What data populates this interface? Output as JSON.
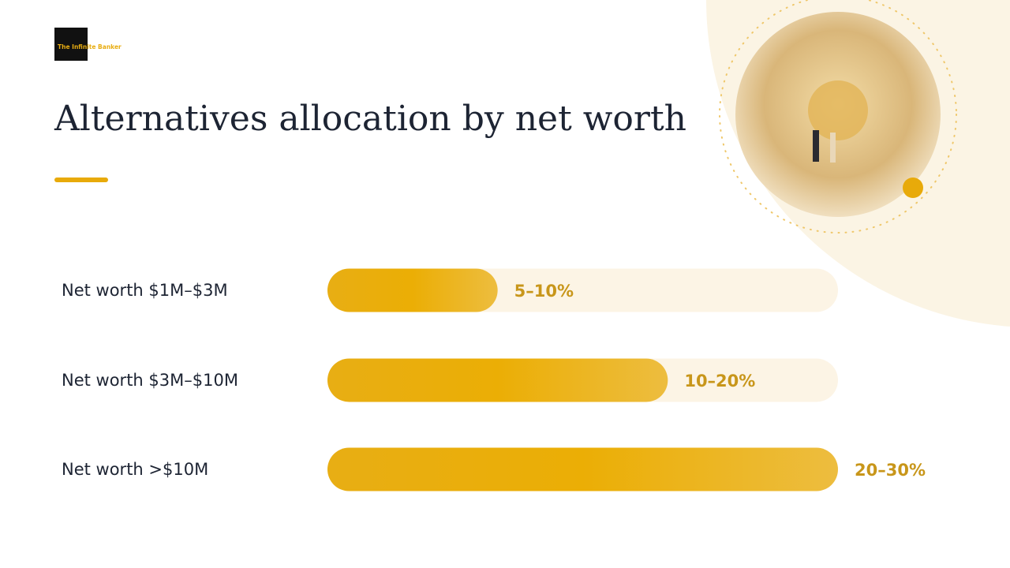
{
  "logo": "The Infinite Banker",
  "chart_data": {
    "type": "bar",
    "orientation": "horizontal",
    "title": "Alternatives allocation by net worth",
    "categories": [
      "Net worth $1M–$3M",
      "Net worth $3M–$10M",
      "Net worth >$10M"
    ],
    "values": [
      10,
      20,
      30
    ],
    "value_labels": [
      "5–10%",
      "10–20%",
      "20–30%"
    ],
    "xlim": [
      0,
      30
    ],
    "color": "#e9ad0c",
    "track_color": "#fcf4e5"
  }
}
